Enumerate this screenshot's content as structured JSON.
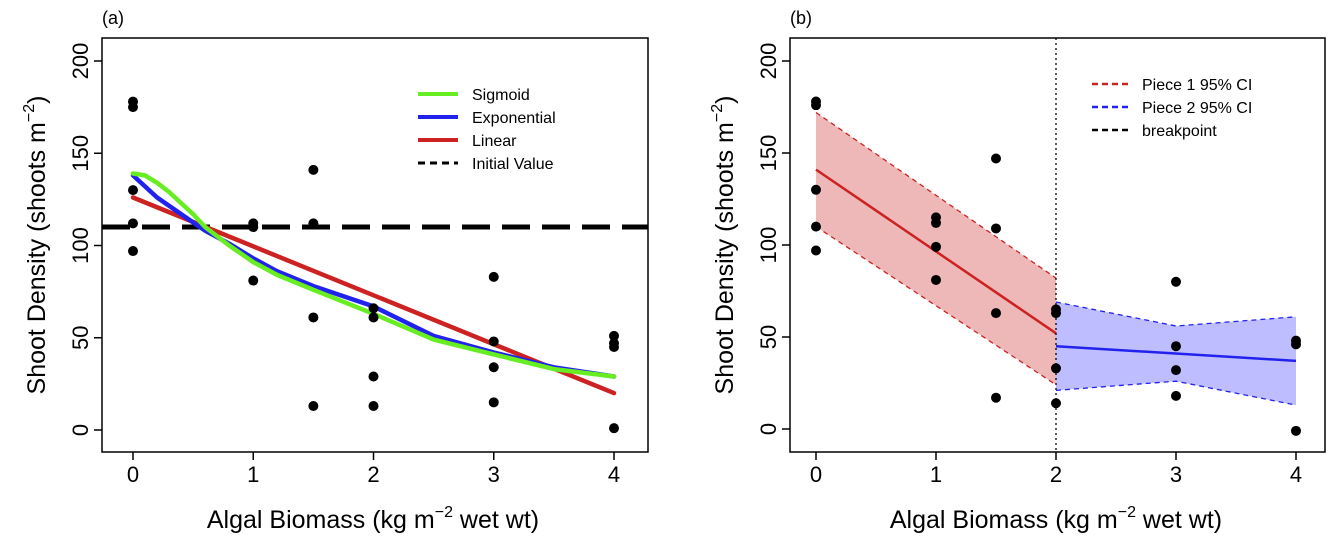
{
  "chart_data": [
    {
      "panel_label": "(a)",
      "type": "scatter",
      "xlabel": {
        "pre": "Algal Biomass (kg m",
        "sup": "−2",
        "post": " wet wt)"
      },
      "ylabel": {
        "pre": "Shoot Density (shoots m",
        "sup": "−2",
        "post": ")"
      },
      "xlim": [
        0,
        4
      ],
      "ylim": [
        0,
        200
      ],
      "x_ticks": [
        "0",
        "1",
        "2",
        "3",
        "4"
      ],
      "y_ticks": [
        "0",
        "50",
        "100",
        "150",
        "200"
      ],
      "legend_position": "top-right",
      "points": [
        {
          "x": 0,
          "y": 178
        },
        {
          "x": 0,
          "y": 175
        },
        {
          "x": 0,
          "y": 130
        },
        {
          "x": 0,
          "y": 112
        },
        {
          "x": 0,
          "y": 97
        },
        {
          "x": 1,
          "y": 112
        },
        {
          "x": 1,
          "y": 110
        },
        {
          "x": 1,
          "y": 81
        },
        {
          "x": 1.5,
          "y": 141
        },
        {
          "x": 1.5,
          "y": 112
        },
        {
          "x": 1.5,
          "y": 61
        },
        {
          "x": 1.5,
          "y": 13
        },
        {
          "x": 2,
          "y": 66
        },
        {
          "x": 2,
          "y": 61
        },
        {
          "x": 2,
          "y": 29
        },
        {
          "x": 2,
          "y": 13
        },
        {
          "x": 3,
          "y": 83
        },
        {
          "x": 3,
          "y": 48
        },
        {
          "x": 3,
          "y": 34
        },
        {
          "x": 3,
          "y": 15
        },
        {
          "x": 4,
          "y": 51
        },
        {
          "x": 4,
          "y": 47
        },
        {
          "x": 4,
          "y": 45
        },
        {
          "x": 4,
          "y": 1
        }
      ],
      "series": [
        {
          "name": "Sigmoid",
          "color": "#66ee22",
          "x": [
            0,
            0.1,
            0.2,
            0.3,
            0.4,
            0.5,
            0.6,
            0.8,
            1.0,
            1.2,
            1.5,
            2.0,
            2.5,
            3.0,
            3.5,
            4.0
          ],
          "y": [
            139,
            138,
            134,
            129,
            123,
            117,
            110,
            100,
            91,
            84,
            76,
            63,
            49,
            41,
            33,
            29
          ]
        },
        {
          "name": "Exponential",
          "color": "#2222ee",
          "x": [
            0,
            0.2,
            0.4,
            0.6,
            0.8,
            1.0,
            1.2,
            1.5,
            2.0,
            2.5,
            3.0,
            3.5,
            4.0
          ],
          "y": [
            138,
            126,
            117,
            108,
            101,
            93,
            86,
            78,
            67,
            51,
            42,
            34,
            29
          ]
        },
        {
          "name": "Linear",
          "color": "#cc2222",
          "x": [
            0,
            4
          ],
          "y": [
            126,
            20
          ]
        },
        {
          "name": "Initial Value",
          "color": "#000000",
          "dashed": true,
          "x": [
            0,
            4
          ],
          "y": [
            110,
            110
          ]
        }
      ]
    },
    {
      "panel_label": "(b)",
      "type": "scatter",
      "xlabel": {
        "pre": "Algal Biomass (kg m",
        "sup": "−2",
        "post": " wet wt)"
      },
      "ylabel": {
        "pre": "Shoot Density (shoots m",
        "sup": "−2",
        "post": ")"
      },
      "xlim": [
        0,
        4
      ],
      "ylim": [
        0,
        200
      ],
      "x_ticks": [
        "0",
        "1",
        "2",
        "3",
        "4"
      ],
      "y_ticks": [
        "0",
        "50",
        "100",
        "150",
        "200"
      ],
      "legend_position": "top-right",
      "breakpoint": 2,
      "points": [
        {
          "x": 0,
          "y": 178
        },
        {
          "x": 0,
          "y": 176
        },
        {
          "x": 0,
          "y": 130
        },
        {
          "x": 0,
          "y": 110
        },
        {
          "x": 0,
          "y": 97
        },
        {
          "x": 1,
          "y": 115
        },
        {
          "x": 1,
          "y": 112
        },
        {
          "x": 1,
          "y": 99
        },
        {
          "x": 1,
          "y": 81
        },
        {
          "x": 1.5,
          "y": 147
        },
        {
          "x": 1.5,
          "y": 109
        },
        {
          "x": 1.5,
          "y": 63
        },
        {
          "x": 1.5,
          "y": 17
        },
        {
          "x": 2,
          "y": 65
        },
        {
          "x": 2,
          "y": 63
        },
        {
          "x": 2,
          "y": 33
        },
        {
          "x": 2,
          "y": 14
        },
        {
          "x": 3,
          "y": 80
        },
        {
          "x": 3,
          "y": 45
        },
        {
          "x": 3,
          "y": 32
        },
        {
          "x": 3,
          "y": 18
        },
        {
          "x": 4,
          "y": 48
        },
        {
          "x": 4,
          "y": 46
        },
        {
          "x": 4,
          "y": -1
        }
      ],
      "pieces": [
        {
          "name": "Piece 1 95% CI",
          "color": "#cc2222",
          "fill": "#cc2222",
          "fit": {
            "x": [
              0,
              2
            ],
            "y": [
              141,
              52
            ]
          },
          "ci_upper": {
            "x": [
              0,
              2
            ],
            "y": [
              172,
              82
            ]
          },
          "ci_lower": {
            "x": [
              0,
              2
            ],
            "y": [
              110,
              24
            ]
          }
        },
        {
          "name": "Piece 2 95% CI",
          "color": "#2222ee",
          "fill": "#3333ff",
          "fit": {
            "x": [
              2,
              4
            ],
            "y": [
              45,
              37
            ]
          },
          "ci_upper": {
            "x": [
              2,
              3,
              4
            ],
            "y": [
              69,
              56,
              61
            ]
          },
          "ci_lower": {
            "x": [
              2,
              3,
              4
            ],
            "y": [
              21,
              26,
              13
            ]
          }
        }
      ],
      "breakpoint_label": "breakpoint"
    }
  ]
}
